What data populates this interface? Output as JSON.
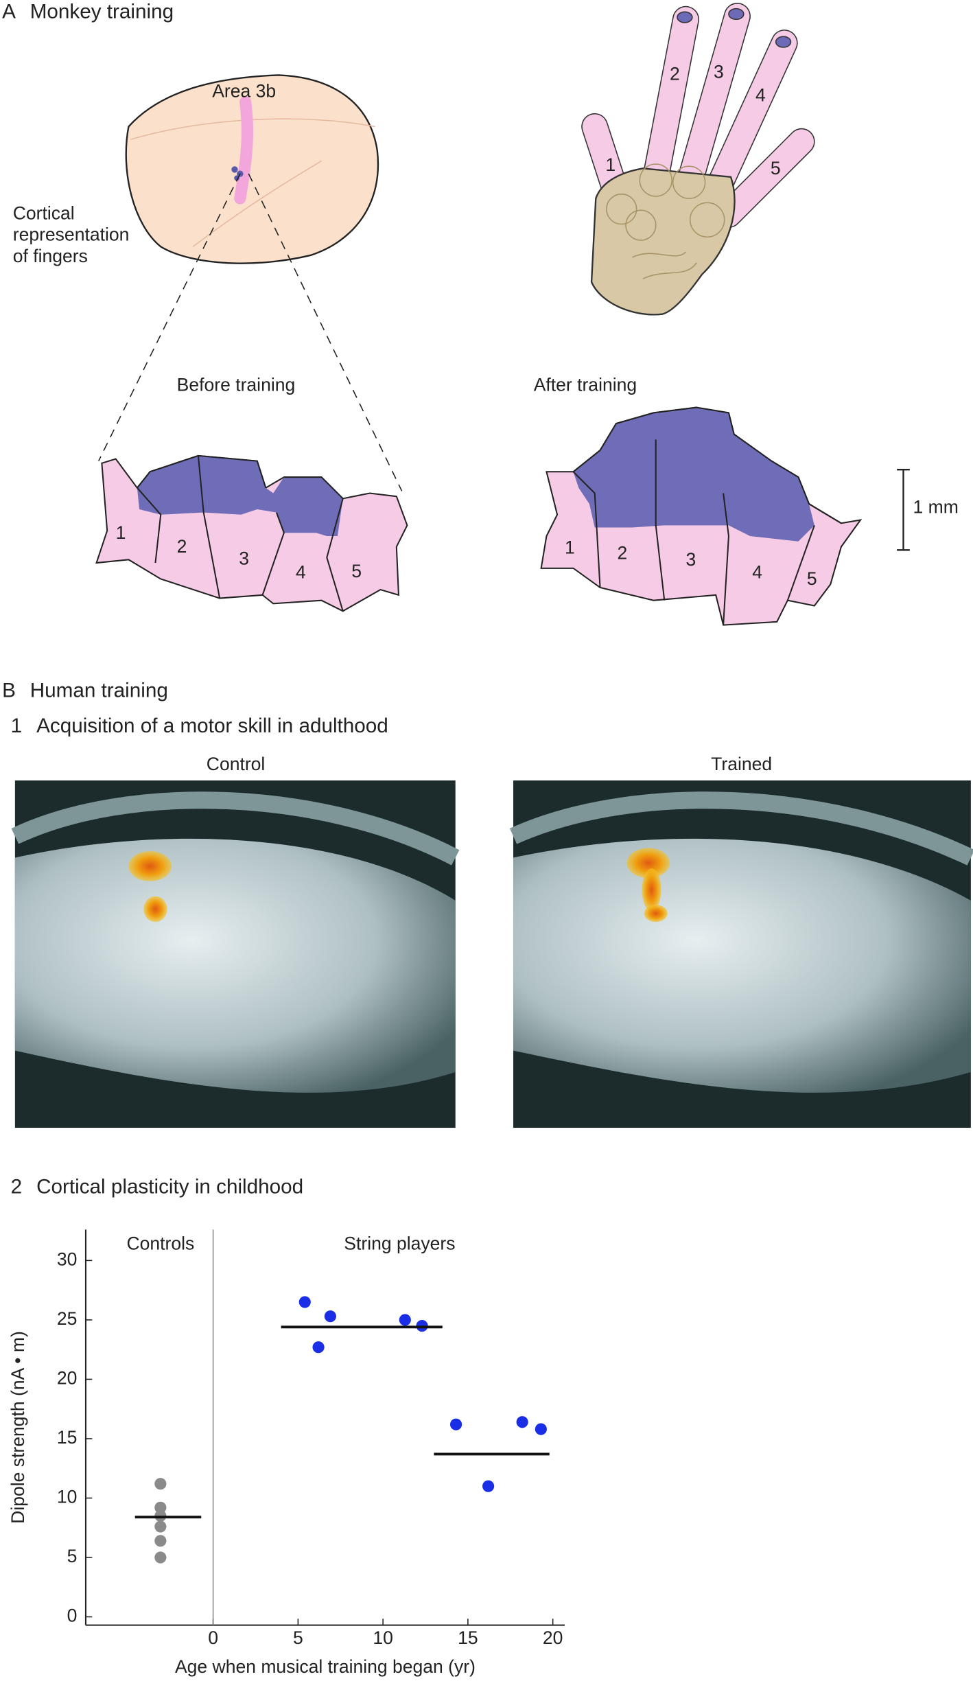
{
  "panel_a": {
    "letter": "A",
    "title": "Monkey training",
    "area_label": "Area 3b",
    "cortical_label": [
      "Cortical",
      "representation",
      "of fingers"
    ],
    "hand_digits": [
      "1",
      "2",
      "3",
      "4",
      "5"
    ],
    "before_title": "Before training",
    "before_digits": [
      "1",
      "2",
      "3",
      "4",
      "5"
    ],
    "after_title": "After training",
    "after_digits": [
      "1",
      "2",
      "3",
      "4",
      "5"
    ],
    "scale_bar": "1 mm"
  },
  "panel_b": {
    "letter": "B",
    "title": "Human training",
    "part1_number": "1",
    "part1_title": "Acquisition of a motor skill in adulthood",
    "image_left": "Control",
    "image_right": "Trained",
    "part2_number": "2",
    "part2_title": "Cortical plasticity in childhood"
  },
  "chart_data": {
    "type": "scatter",
    "xlabel": "Age when musical training began (yr)",
    "ylabel": "Dipole strength (nA • m)",
    "xlim": [
      -7.5,
      20.7
    ],
    "ylim": [
      -0.7,
      32.6
    ],
    "xticks": [
      0,
      5,
      10,
      15,
      20
    ],
    "yticks": [
      0,
      5,
      10,
      15,
      20,
      25,
      30
    ],
    "reference_line_x": 0,
    "series": [
      {
        "name": "Controls",
        "color": "#8a8a8a",
        "x": [
          -3.1,
          -3.1,
          -3.1,
          -3.1,
          -3.1,
          -3.1
        ],
        "values": [
          11.2,
          9.2,
          8.5,
          7.6,
          6.4,
          5.0
        ]
      },
      {
        "name": "String players",
        "color": "#1a2ee6",
        "x": [
          5.4,
          6.9,
          6.2,
          11.3,
          12.3,
          14.3,
          16.2,
          18.2,
          19.3
        ],
        "values": [
          26.5,
          25.3,
          22.7,
          25.0,
          24.5,
          16.2,
          11.0,
          16.4,
          15.8
        ]
      }
    ],
    "means": [
      {
        "x": [
          -4.6,
          -0.7
        ],
        "y": 8.4
      },
      {
        "x": [
          4.0,
          13.5
        ],
        "y": 24.4
      },
      {
        "x": [
          13.0,
          19.8
        ],
        "y": 13.7
      }
    ]
  }
}
